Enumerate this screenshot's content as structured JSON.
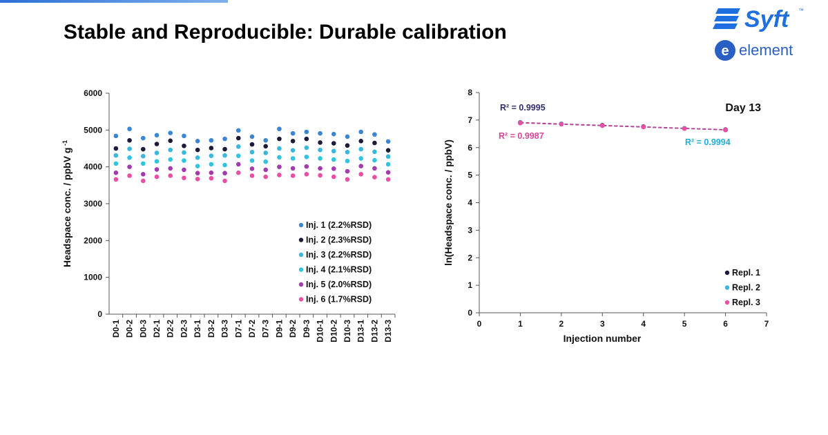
{
  "slide": {
    "title": "Stable and Reproducible: Durable calibration"
  },
  "logos": {
    "brand1": "Syft",
    "brand1_tm": "™",
    "brand2": "element",
    "brand1_color": "#1f6fe0",
    "brand2_color": "#2a5fc4"
  },
  "chart_data": [
    {
      "type": "scatter",
      "ylabel": "Headspace conc. / ppbV g",
      "ylabel_sup": "-1",
      "xlabel": "",
      "ylim": [
        0,
        6000
      ],
      "yticks": [
        0,
        1000,
        2000,
        3000,
        4000,
        5000,
        6000
      ],
      "grid": false,
      "legend_position": "bottom-right",
      "categories": [
        "D0-1",
        "D0-2",
        "D0-3",
        "D2-1",
        "D2-2",
        "D2-3",
        "D3-1",
        "D3-2",
        "D3-3",
        "D7-1",
        "D7-2",
        "D7-3",
        "D9-1",
        "D9-2",
        "D9-3",
        "D10-1",
        "D10-2",
        "D10-3",
        "D13-1",
        "D13-2",
        "D13-3"
      ],
      "series": [
        {
          "name": "Inj. 1 (2.2%RSD)",
          "color": "#3a86d4",
          "values": [
            4840,
            5030,
            4780,
            4860,
            4920,
            4840,
            4700,
            4720,
            4760,
            4990,
            4820,
            4720,
            5030,
            4910,
            4950,
            4910,
            4890,
            4820,
            4950,
            4880,
            4690
          ]
        },
        {
          "name": "Inj. 2 (2.3%RSD)",
          "color": "#1b1b3a",
          "values": [
            4500,
            4720,
            4480,
            4620,
            4710,
            4570,
            4460,
            4510,
            4480,
            4780,
            4610,
            4560,
            4760,
            4700,
            4760,
            4660,
            4640,
            4580,
            4700,
            4650,
            4450
          ]
        },
        {
          "name": "Inj. 3 (2.2%RSD)",
          "color": "#39b7dd",
          "values": [
            4310,
            4490,
            4290,
            4380,
            4460,
            4390,
            4250,
            4300,
            4310,
            4550,
            4400,
            4380,
            4500,
            4450,
            4520,
            4460,
            4430,
            4400,
            4480,
            4410,
            4280
          ]
        },
        {
          "name": "Inj. 4 (2.1%RSD)",
          "color": "#2fc4e2",
          "values": [
            4090,
            4250,
            4090,
            4150,
            4200,
            4170,
            4020,
            4070,
            4050,
            4300,
            4170,
            4140,
            4260,
            4230,
            4270,
            4230,
            4200,
            4160,
            4230,
            4180,
            4070
          ]
        },
        {
          "name": "Inj. 5 (2.0%RSD)",
          "color": "#a43ab0",
          "values": [
            3840,
            4000,
            3800,
            3930,
            3960,
            3920,
            3830,
            3840,
            3830,
            4070,
            3950,
            3920,
            4000,
            3960,
            4010,
            3960,
            3950,
            3880,
            4020,
            3960,
            3850
          ]
        },
        {
          "name": "Inj. 6 (1.7%RSD)",
          "color": "#ea4fa3",
          "values": [
            3660,
            3760,
            3620,
            3730,
            3760,
            3700,
            3670,
            3690,
            3620,
            3840,
            3760,
            3730,
            3780,
            3760,
            3800,
            3770,
            3730,
            3660,
            3800,
            3720,
            3660
          ]
        }
      ]
    },
    {
      "type": "scatter",
      "title": "Day 13",
      "xlabel": "Injection number",
      "ylabel": "ln(Headspace conc. / ppbV)",
      "xlim": [
        0,
        7
      ],
      "ylim": [
        0,
        8
      ],
      "xticks": [
        0,
        1,
        2,
        3,
        4,
        5,
        6,
        7
      ],
      "yticks": [
        0,
        1,
        2,
        3,
        4,
        5,
        6,
        7,
        8
      ],
      "grid": false,
      "legend_position": "bottom-right",
      "x": [
        1,
        2,
        3,
        4,
        5,
        6
      ],
      "series": [
        {
          "name": "Repl. 1",
          "color": "#1b1b3a",
          "values": [
            6.91,
            6.86,
            6.81,
            6.76,
            6.7,
            6.65
          ],
          "r2": "R² = 0.9995",
          "r2_color": "#2f2f6a"
        },
        {
          "name": "Repl. 2",
          "color": "#39b7dd",
          "values": [
            6.9,
            6.86,
            6.8,
            6.75,
            6.7,
            6.64
          ],
          "r2": "R² = 0.9994",
          "r2_color": "#1faed8"
        },
        {
          "name": "Repl. 3",
          "color": "#ea4fa3",
          "values": [
            6.89,
            6.85,
            6.8,
            6.75,
            6.69,
            6.64
          ],
          "r2": "R² = 0.9987",
          "r2_color": "#d94495"
        }
      ],
      "trendline_color": "#b0449a"
    }
  ]
}
